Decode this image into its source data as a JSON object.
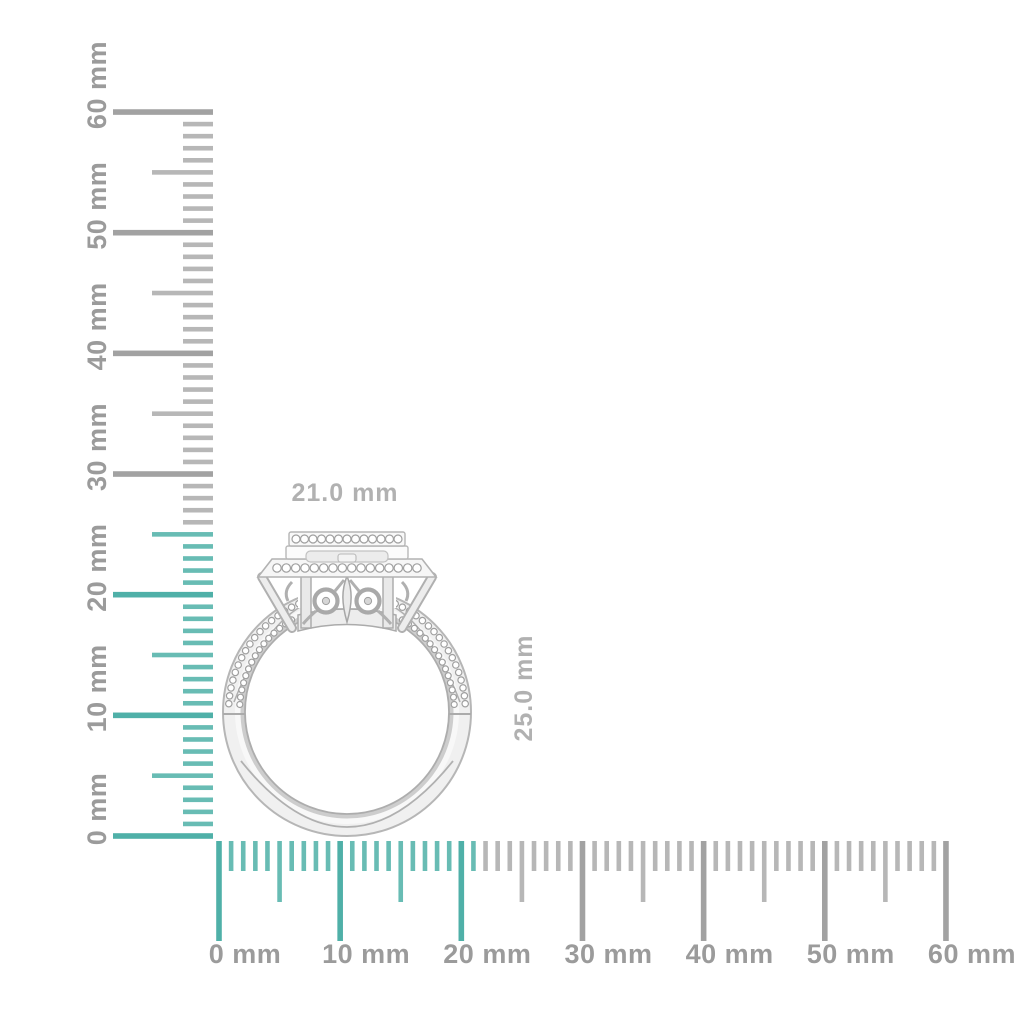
{
  "scene": {
    "background_color": "#ffffff",
    "description": "Side view of a diamond halo split-shank ring measured against millimeter rulers"
  },
  "object": {
    "name": "halo-diamond-ring",
    "width_label": "21.0 mm",
    "height_label": "25.0 mm"
  },
  "rulers": {
    "unit": "mm",
    "colors": {
      "highlight_minor": "#68bcb4",
      "highlight_major": "#4fb0a8",
      "gray_minor": "#b7b7b7",
      "gray_major": "#a2a2a2",
      "label": "#9b9b9b"
    },
    "vertical": {
      "min_mm": 0,
      "max_mm": 60,
      "minor_step_mm": 1,
      "medium_step_mm": 5,
      "major_step_mm": 10,
      "highlight_to_mm": 25,
      "labels": [
        "0 mm",
        "10 mm",
        "20 mm",
        "30 mm",
        "40 mm",
        "50 mm",
        "60 mm"
      ]
    },
    "horizontal": {
      "min_mm": 0,
      "max_mm": 60,
      "minor_step_mm": 1,
      "medium_step_mm": 5,
      "major_step_mm": 10,
      "highlight_to_mm": 21,
      "labels": [
        "0 mm",
        "10 mm",
        "20 mm",
        "30 mm",
        "40 mm",
        "50 mm",
        "60 mm"
      ]
    }
  },
  "dimension_labels": {
    "color": "#b1b1b1"
  }
}
